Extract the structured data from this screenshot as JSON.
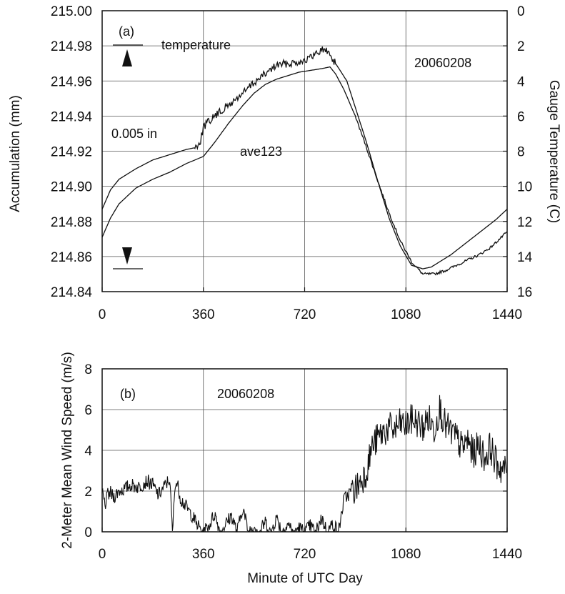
{
  "chart_data": [
    {
      "panel": "(a)",
      "type": "line",
      "date_label": "20060208",
      "xlabel": "",
      "ylabel": "Accumulation (mm)",
      "ylabel_right": "Gauge Temperature (C)",
      "xlim": [
        0,
        1440
      ],
      "ylim": [
        214.84,
        215.0
      ],
      "ylim_right": [
        0,
        16
      ],
      "right_axis_inverted": true,
      "x_ticks": [
        "0",
        "360",
        "720",
        "1080",
        "1440"
      ],
      "y_ticks": [
        "214.84",
        "214.86",
        "214.88",
        "214.90",
        "214.92",
        "214.94",
        "214.96",
        "214.98",
        "215.00"
      ],
      "y_ticks_right": [
        "0",
        "2",
        "4",
        "6",
        "8",
        "10",
        "12",
        "14",
        "16"
      ],
      "grid": true,
      "annotations": {
        "temperature": "temperature",
        "scale": "0.005 in",
        "ave": "ave123"
      },
      "series": [
        {
          "name": "temperature",
          "axis": "right",
          "x": [
            0,
            30,
            60,
            120,
            180,
            240,
            300,
            330,
            350,
            360,
            400,
            450,
            500,
            540,
            580,
            620,
            660,
            700,
            740,
            780,
            800,
            810,
            830,
            870,
            900,
            940,
            980,
            1020,
            1060,
            1100,
            1140,
            1170,
            1200,
            1240,
            1280,
            1320,
            1360,
            1400,
            1440
          ],
          "y": [
            11.3,
            10.2,
            9.6,
            9.0,
            8.5,
            8.2,
            7.9,
            7.8,
            7.4,
            6.6,
            6.0,
            5.4,
            4.7,
            4.1,
            3.6,
            3.1,
            3.0,
            2.9,
            2.7,
            2.2,
            2.3,
            2.5,
            3.0,
            4.0,
            5.5,
            7.5,
            9.7,
            11.8,
            13.4,
            14.5,
            14.7,
            14.6,
            14.3,
            13.9,
            13.4,
            12.9,
            12.4,
            11.9,
            11.3
          ]
        },
        {
          "name": "ave123",
          "axis": "left",
          "x": [
            0,
            30,
            60,
            120,
            180,
            240,
            300,
            330,
            360,
            400,
            450,
            500,
            540,
            580,
            620,
            660,
            700,
            740,
            780,
            810,
            830,
            860,
            900,
            940,
            980,
            1020,
            1060,
            1100,
            1140,
            1180,
            1220,
            1260,
            1300,
            1340,
            1380,
            1440
          ],
          "y": [
            214.871,
            214.882,
            214.89,
            214.899,
            214.904,
            214.908,
            214.913,
            214.915,
            214.917,
            214.925,
            214.936,
            214.946,
            214.953,
            214.958,
            214.961,
            214.963,
            214.965,
            214.966,
            214.967,
            214.968,
            214.964,
            214.955,
            214.94,
            214.922,
            214.903,
            214.885,
            214.869,
            214.857,
            214.85,
            214.85,
            214.852,
            214.855,
            214.858,
            214.861,
            214.865,
            214.874
          ]
        }
      ]
    },
    {
      "panel": "(b)",
      "type": "line",
      "date_label": "20060208",
      "xlabel": "Minute of UTC Day",
      "ylabel": "2-Meter Mean Wind Speed (m/s)",
      "xlim": [
        0,
        1440
      ],
      "ylim": [
        0,
        8
      ],
      "x_ticks": [
        "0",
        "360",
        "720",
        "1080",
        "1440"
      ],
      "y_ticks": [
        "0",
        "2",
        "4",
        "6",
        "8"
      ],
      "grid": true,
      "series": [
        {
          "name": "",
          "x": [
            0,
            10,
            20,
            30,
            40,
            60,
            80,
            100,
            130,
            160,
            180,
            200,
            220,
            240,
            250,
            260,
            270,
            280,
            300,
            320,
            340,
            360,
            380,
            400,
            420,
            440,
            460,
            480,
            500,
            520,
            540,
            560,
            580,
            600,
            620,
            640,
            660,
            680,
            700,
            720,
            740,
            760,
            780,
            800,
            820,
            840,
            860,
            880,
            900,
            920,
            940,
            960,
            980,
            1000,
            1020,
            1040,
            1060,
            1080,
            1100,
            1120,
            1140,
            1160,
            1180,
            1200,
            1220,
            1240,
            1260,
            1280,
            1300,
            1320,
            1340,
            1360,
            1380,
            1400,
            1420,
            1440
          ],
          "y": [
            2.0,
            1.3,
            1.8,
            1.9,
            1.7,
            2.0,
            2.1,
            2.3,
            2.2,
            2.5,
            2.3,
            1.8,
            2.2,
            2.6,
            0.0,
            2.5,
            2.2,
            1.6,
            1.2,
            0.8,
            0.3,
            0.0,
            0.3,
            0.9,
            0.0,
            0.4,
            0.8,
            0.0,
            1.2,
            0.0,
            0.3,
            0.0,
            0.5,
            0.0,
            0.7,
            0.0,
            0.4,
            0.0,
            0.2,
            0.0,
            0.3,
            0.0,
            0.7,
            0.0,
            0.4,
            0.0,
            1.6,
            1.9,
            2.1,
            2.5,
            3.0,
            4.2,
            4.6,
            4.9,
            5.1,
            5.0,
            5.3,
            5.2,
            5.5,
            5.4,
            5.1,
            5.6,
            5.0,
            6.1,
            5.2,
            4.9,
            4.6,
            4.1,
            4.5,
            3.8,
            4.3,
            3.6,
            4.2,
            3.4,
            3.1,
            3.0
          ]
        }
      ]
    }
  ]
}
